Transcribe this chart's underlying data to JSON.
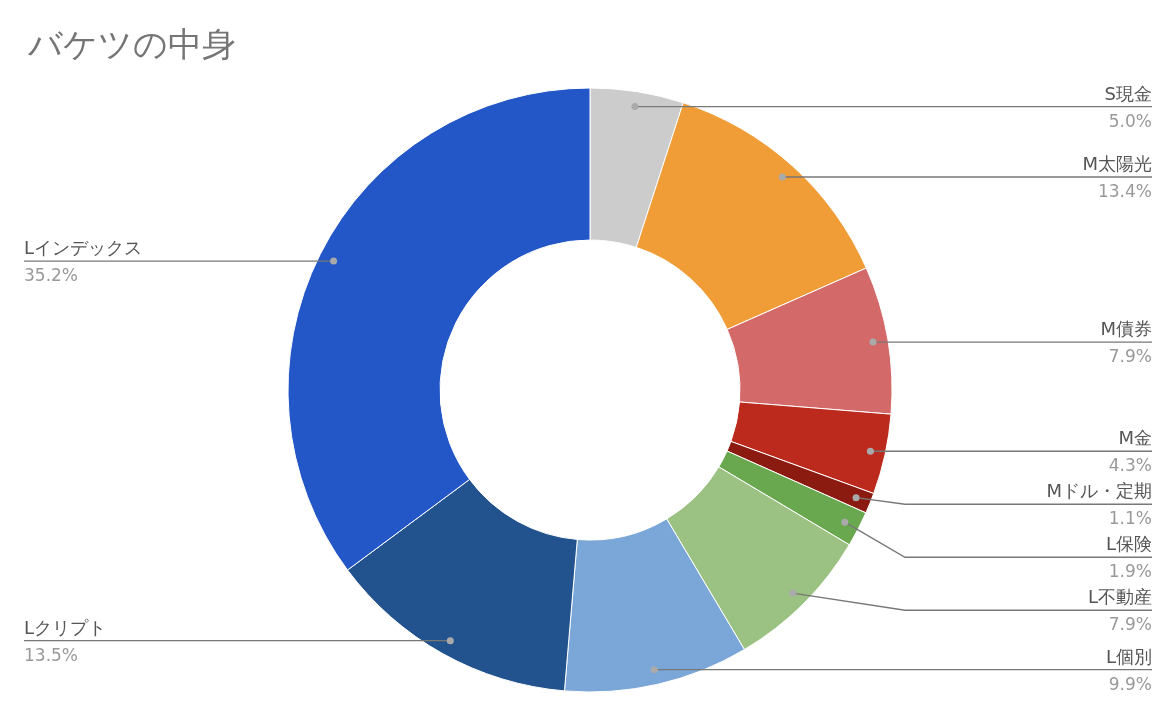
{
  "chart_data": {
    "type": "donut",
    "title": "バケツの中身",
    "categories": [
      "S現金",
      "M太陽光",
      "M債券",
      "M金",
      "Mドル・定期",
      "L保険",
      "L不動産",
      "L個別",
      "Lクリプト",
      "Lインデックス"
    ],
    "values": [
      5.0,
      13.4,
      7.9,
      4.3,
      1.1,
      1.9,
      7.9,
      9.9,
      13.5,
      35.2
    ],
    "value_labels": [
      "5.0%",
      "13.4%",
      "7.9%",
      "4.3%",
      "1.1%",
      "1.9%",
      "7.9%",
      "9.9%",
      "13.5%",
      "35.2%"
    ],
    "colors": [
      "#cccccc",
      "#f09d38",
      "#d4696a",
      "#bb2a1c",
      "#8b1a10",
      "#6aa84f",
      "#9cc283",
      "#7ba7d8",
      "#22538e",
      "#2356c7"
    ]
  }
}
